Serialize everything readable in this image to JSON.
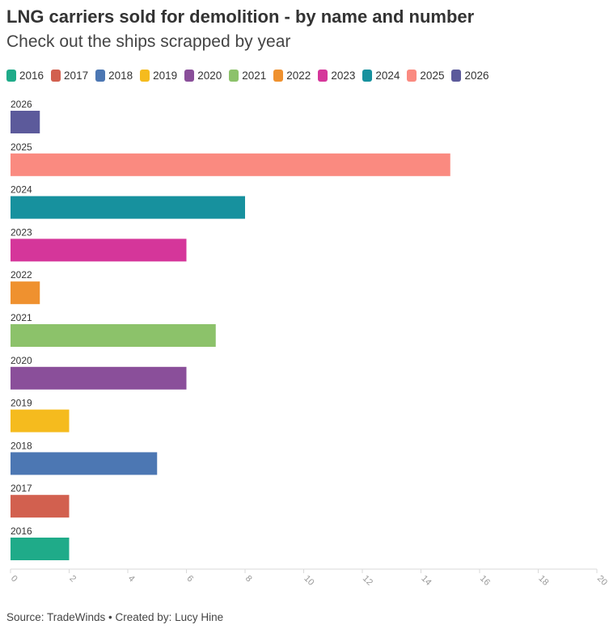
{
  "header": {
    "title": "LNG carriers sold for demolition - by name and number",
    "subtitle": "Check out the ships scrapped by year"
  },
  "legend": [
    {
      "label": "2016",
      "color": "#1fab89"
    },
    {
      "label": "2017",
      "color": "#d2604f"
    },
    {
      "label": "2018",
      "color": "#4c77b3"
    },
    {
      "label": "2019",
      "color": "#f5bb1e"
    },
    {
      "label": "2020",
      "color": "#8a4f9a"
    },
    {
      "label": "2021",
      "color": "#8cc26a"
    },
    {
      "label": "2022",
      "color": "#ef912f"
    },
    {
      "label": "2023",
      "color": "#d5369a"
    },
    {
      "label": "2024",
      "color": "#17919e"
    },
    {
      "label": "2025",
      "color": "#fa8a80"
    },
    {
      "label": "2026",
      "color": "#5c5a9b"
    }
  ],
  "chart_data": {
    "type": "bar",
    "orientation": "horizontal",
    "title": "LNG carriers sold for demolition - by name and number",
    "subtitle": "Check out the ships scrapped by year",
    "categories": [
      "2026",
      "2025",
      "2024",
      "2023",
      "2022",
      "2021",
      "2020",
      "2019",
      "2018",
      "2017",
      "2016"
    ],
    "values": [
      1,
      15,
      8,
      6,
      1,
      7,
      6,
      2,
      5,
      2,
      2
    ],
    "colors": [
      "#5c5a9b",
      "#fa8a80",
      "#17919e",
      "#d5369a",
      "#ef912f",
      "#8cc26a",
      "#8a4f9a",
      "#f5bb1e",
      "#4c77b3",
      "#d2604f",
      "#1fab89"
    ],
    "xlim": [
      0,
      20
    ],
    "xticks": [
      "0",
      "2",
      "4",
      "6",
      "8",
      "10",
      "12",
      "14",
      "16",
      "18",
      "20"
    ],
    "xlabel": "",
    "ylabel": "",
    "grid": false,
    "legend_position": "top"
  },
  "footer": {
    "source": "Source: TradeWinds • Created by: Lucy Hine"
  }
}
